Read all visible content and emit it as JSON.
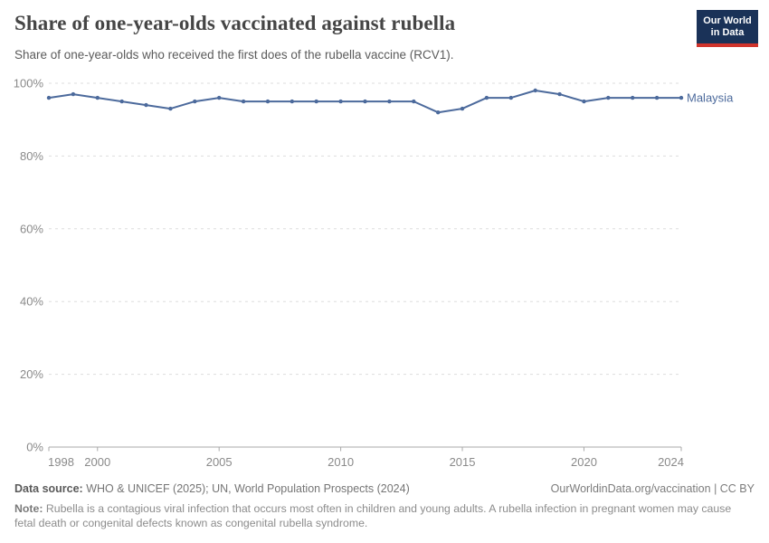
{
  "header": {
    "title": "Share of one-year-olds vaccinated against rubella",
    "subtitle": "Share of one-year-olds who received the first does of the rubella vaccine (RCV1)."
  },
  "logo": {
    "line1": "Our World",
    "line2": "in Data",
    "bg_color": "#1A3258",
    "stripe_color": "#D0342C"
  },
  "chart_data": {
    "type": "line",
    "title": "Share of one-year-olds vaccinated against rubella",
    "xlabel": "",
    "ylabel": "",
    "unit": "%",
    "ylim": [
      0,
      100
    ],
    "yticks": [
      0,
      20,
      40,
      60,
      80,
      100
    ],
    "ytick_suffix": "%",
    "xticks": [
      1998,
      2000,
      2005,
      2010,
      2015,
      2020,
      2024
    ],
    "grid": "horizontal-dashed",
    "legend_position": "end-of-line-label",
    "x": [
      1998,
      1999,
      2000,
      2001,
      2002,
      2003,
      2004,
      2005,
      2006,
      2007,
      2008,
      2009,
      2010,
      2011,
      2012,
      2013,
      2014,
      2015,
      2016,
      2017,
      2018,
      2019,
      2020,
      2021,
      2022,
      2023,
      2024
    ],
    "series": [
      {
        "name": "Malaysia",
        "color": "#4C6A9C",
        "values": [
          96,
          97,
          96,
          95,
          94,
          93,
          95,
          96,
          95,
          95,
          95,
          95,
          95,
          95,
          95,
          95,
          92,
          93,
          96,
          96,
          98,
          97,
          95,
          96,
          96,
          96,
          96
        ]
      }
    ],
    "axis_color": "#a9a9a9",
    "grid_color": "#dddddd",
    "tick_label_color": "#8a8a8a"
  },
  "footer": {
    "datasource_label": "Data source:",
    "datasource": "WHO & UNICEF (2025); UN, World Population Prospects (2024)",
    "link": "OurWorldinData.org/vaccination | CC BY",
    "note_label": "Note:",
    "note": "Rubella is a contagious viral infection that occurs most often in children and young adults. A rubella infection in pregnant women may cause fetal death or congenital defects known as congenital rubella syndrome."
  }
}
